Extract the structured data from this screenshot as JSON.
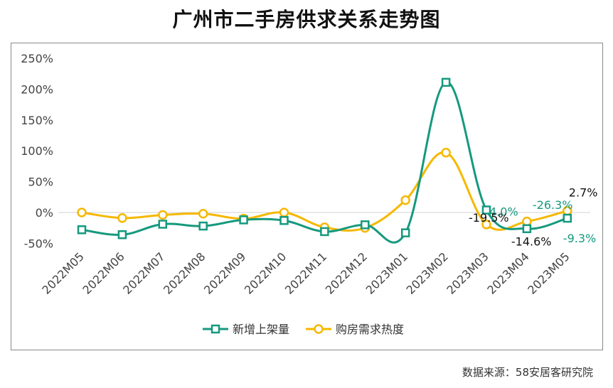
{
  "title": "广州市二手房供求关系走势图",
  "source": "数据来源：58安居客研究院",
  "colors": {
    "supply": "#15997e",
    "demand": "#f5b800",
    "axis_text": "#444444",
    "zero_line": "#d0d0d0"
  },
  "chart_data": {
    "type": "line",
    "title": "广州市二手房供求关系走势图",
    "categories": [
      "2022M05",
      "2022M06",
      "2022M07",
      "2022M08",
      "2022M09",
      "2022M10",
      "2022M11",
      "2022M12",
      "2023M01",
      "2023M02",
      "2023M03",
      "2023M04",
      "2023M05"
    ],
    "ylim": [
      -50,
      250
    ],
    "yticks": [
      -50,
      0,
      50,
      100,
      150,
      200,
      250
    ],
    "ytick_labels": [
      "-50%",
      "0%",
      "50%",
      "100%",
      "150%",
      "200%",
      "250%"
    ],
    "grid": false,
    "legend_position": "bottom",
    "series": [
      {
        "name": "新增上架量",
        "marker": "square",
        "values": [
          -28,
          -36,
          -19,
          -22,
          -12,
          -13,
          -31,
          -20,
          -33,
          211,
          4.0,
          -26.3,
          -9.3
        ]
      },
      {
        "name": "购房需求热度",
        "marker": "circle",
        "values": [
          0,
          -9,
          -4,
          -2,
          -10,
          0,
          -24,
          -25,
          20,
          97,
          -19.5,
          -14.6,
          2.7
        ]
      }
    ],
    "data_labels": [
      {
        "series": 0,
        "index": 10,
        "text": "4.0%"
      },
      {
        "series": 0,
        "index": 11,
        "text": "-26.3%"
      },
      {
        "series": 0,
        "index": 12,
        "text": "-9.3%"
      },
      {
        "series": 1,
        "index": 10,
        "text": "-19.5%"
      },
      {
        "series": 1,
        "index": 11,
        "text": "-14.6%"
      },
      {
        "series": 1,
        "index": 12,
        "text": "2.7%"
      }
    ]
  }
}
